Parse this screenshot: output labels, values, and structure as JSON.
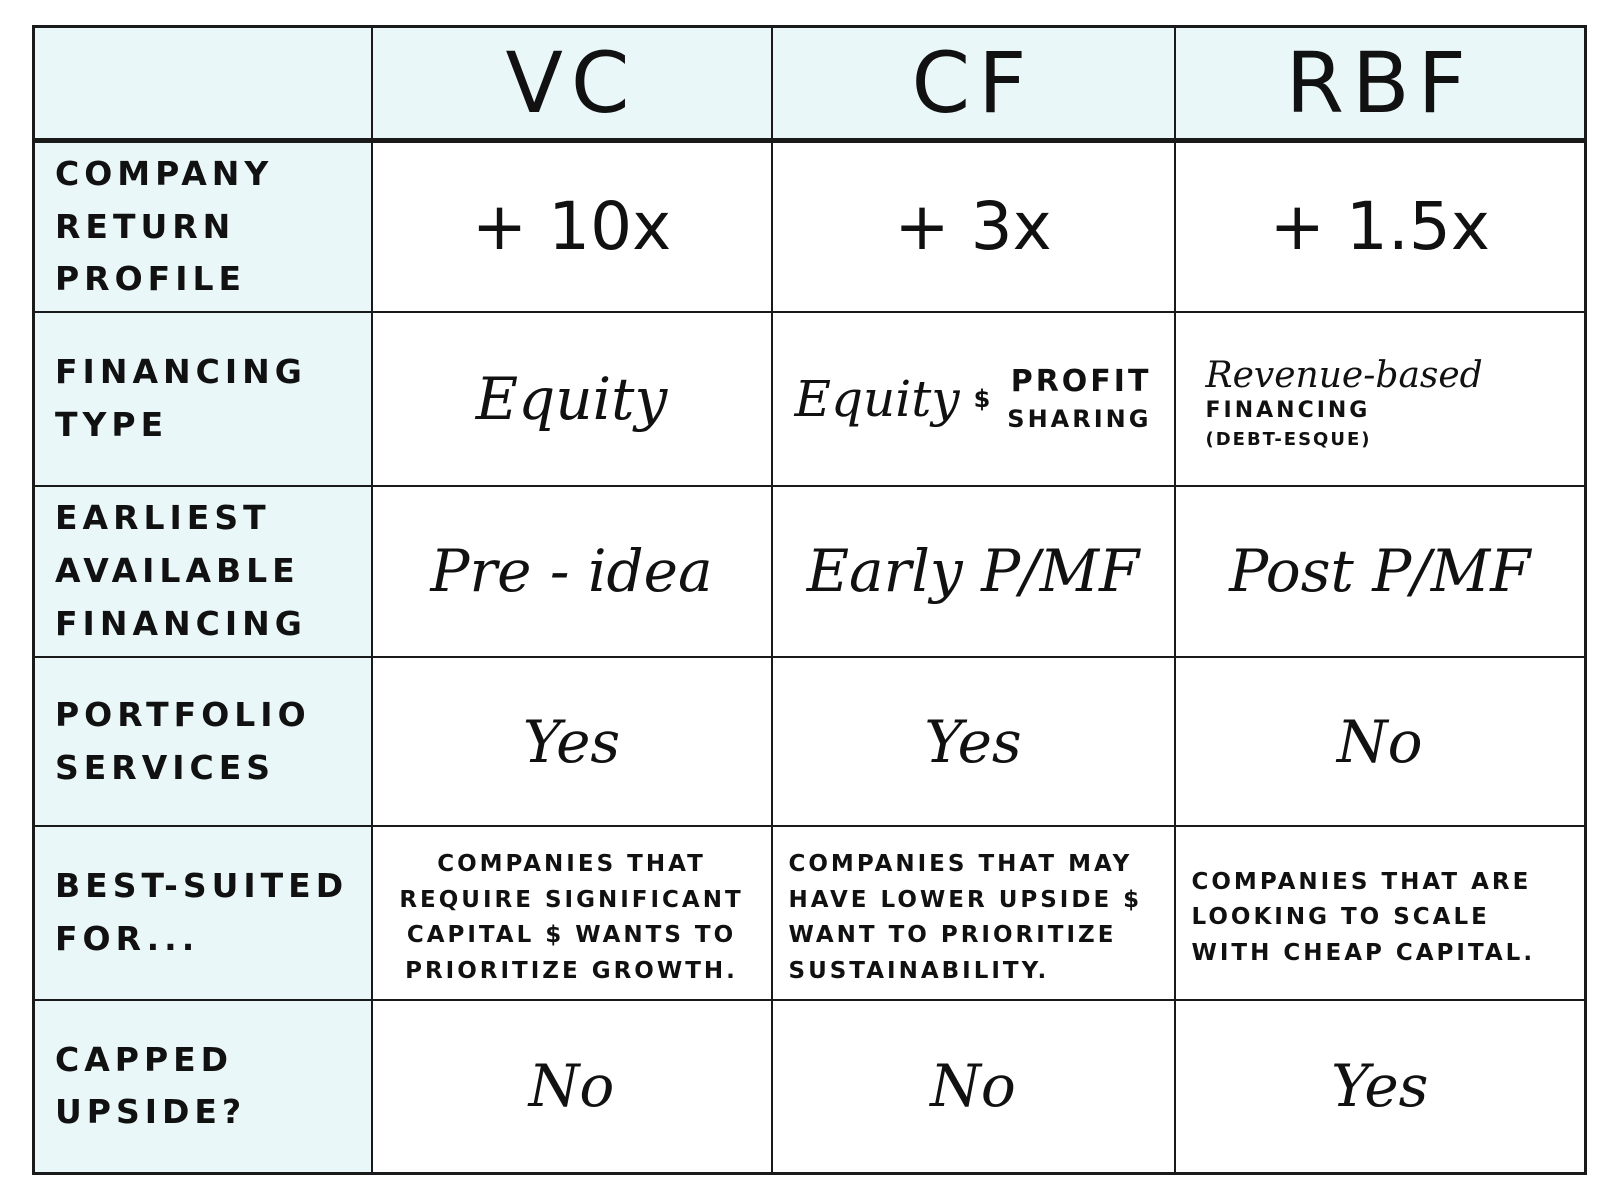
{
  "header": {
    "corner": "",
    "columns": [
      "VC",
      "CF",
      "RBF"
    ]
  },
  "rows": [
    {
      "label": "Company\nReturn Profile",
      "values": [
        "+ 10x",
        "+ 3x",
        "+ 1.5x"
      ]
    },
    {
      "label": "Financing\nType",
      "vc": "Equity",
      "cf": {
        "main": "Equity",
        "amp": "$",
        "extra_line1": "Profit",
        "extra_line2": "Sharing"
      },
      "rbf": {
        "main": "Revenue-based",
        "line2": "Financing",
        "line3": "(Debt-esque)"
      }
    },
    {
      "label": "Earliest\nAvailable\nFinancing",
      "values": [
        "Pre - idea",
        "Early P/MF",
        "Post P/MF"
      ]
    },
    {
      "label": "Portfolio\nServices",
      "values": [
        "Yes",
        "Yes",
        "No"
      ]
    },
    {
      "label": "Best-suited\nfor...",
      "values": [
        "Companies that require significant capital $ wants to prioritize growth.",
        "Companies that may have lower upside $ want to prioritize sustainability.",
        "Companies that are looking to scale with cheap capital."
      ]
    },
    {
      "label": "Capped\nupside?",
      "values": [
        "No",
        "No",
        "Yes"
      ]
    }
  ]
}
